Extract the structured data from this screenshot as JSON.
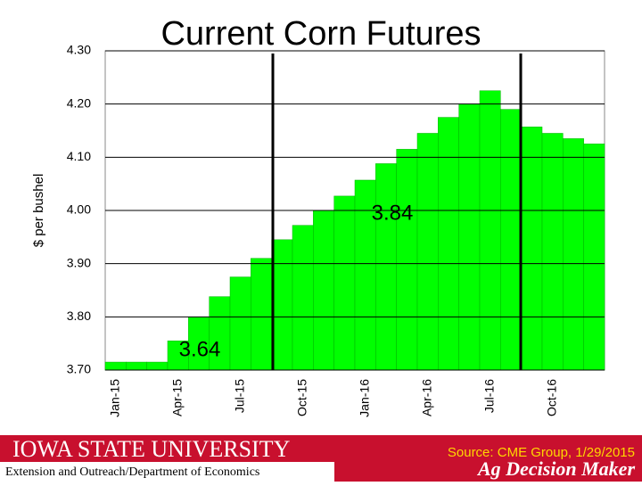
{
  "chart_data": {
    "type": "bar",
    "title": "Current Corn Futures",
    "y_label": "$ per bushel",
    "categories": [
      "Jan-15",
      null,
      null,
      "Apr-15",
      null,
      null,
      "Jul-15",
      null,
      null,
      "Oct-15",
      null,
      null,
      "Jan-16",
      null,
      null,
      "Apr-16",
      null,
      null,
      "Jul-16",
      null,
      null,
      "Oct-16",
      null,
      null
    ],
    "values": [
      3.715,
      3.715,
      3.715,
      3.755,
      3.8,
      3.838,
      3.875,
      3.91,
      3.945,
      3.972,
      4.0,
      4.027,
      4.057,
      4.088,
      4.115,
      4.145,
      4.175,
      4.2,
      4.225,
      4.19,
      4.157,
      4.145,
      4.135,
      4.125
    ],
    "color": "#00ff00",
    "ylim": [
      3.7,
      4.3
    ],
    "yticks": [
      {
        "value": 3.7,
        "label": "3.70"
      },
      {
        "value": 3.8,
        "label": "3.80"
      },
      {
        "value": 3.9,
        "label": "3.90"
      },
      {
        "value": 4.0,
        "label": "4.00"
      },
      {
        "value": 4.1,
        "label": "4.10"
      },
      {
        "value": 4.2,
        "label": "4.20"
      },
      {
        "value": 4.3,
        "label": "4.30"
      }
    ],
    "grid": true,
    "annotations": [
      "3.84",
      "3.64"
    ]
  },
  "footer": {
    "university": "Iowa State University",
    "department": "Extension and Outreach/Department of Economics",
    "source": "Source: CME Group, 1/29/2015",
    "brand": "Ag Decision Maker"
  }
}
